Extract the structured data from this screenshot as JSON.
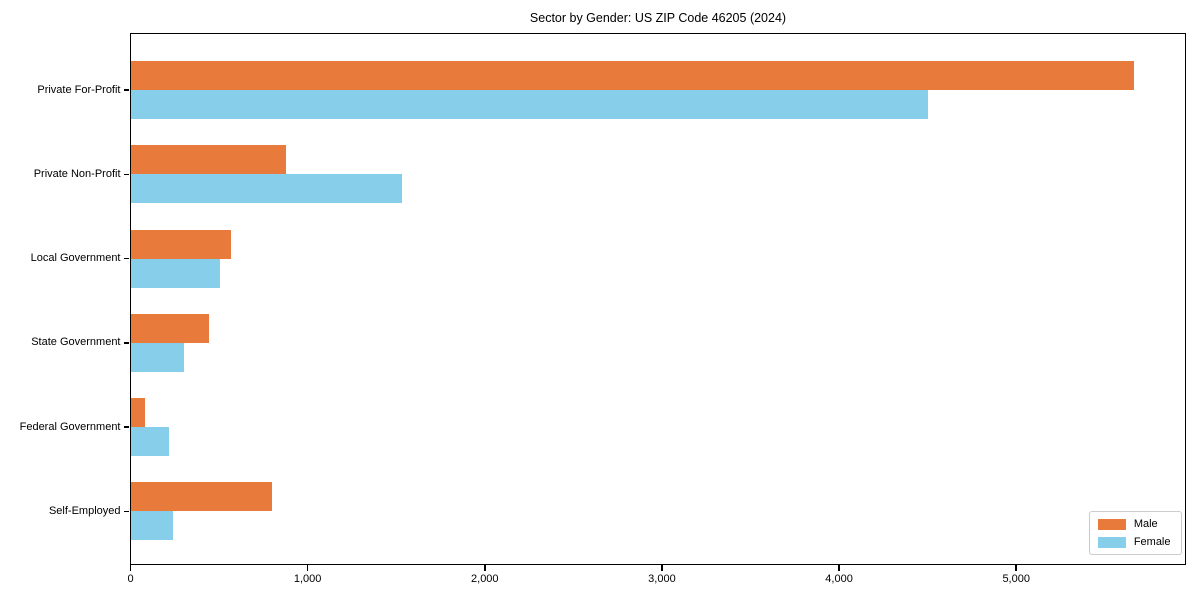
{
  "chart_data": {
    "type": "bar",
    "orientation": "horizontal",
    "title": "Sector by Gender: US ZIP Code 46205 (2024)",
    "categories": [
      "Private For-Profit",
      "Private Non-Profit",
      "Local Government",
      "State Government",
      "Federal Government",
      "Self-Employed"
    ],
    "series": [
      {
        "name": "Male",
        "color": "#E87A3B",
        "values": [
          5665,
          880,
          565,
          445,
          80,
          800
        ]
      },
      {
        "name": "Female",
        "color": "#87CEEB",
        "values": [
          4500,
          1535,
          505,
          300,
          215,
          240
        ]
      }
    ],
    "xlabel": "",
    "ylabel": "",
    "xlim": [
      0,
      5950
    ],
    "xticks": {
      "values": [
        0,
        1000,
        2000,
        3000,
        4000,
        5000
      ],
      "labels": [
        "0",
        "1,000",
        "2,000",
        "3,000",
        "4,000",
        "5,000"
      ]
    },
    "grid": false,
    "legend_position": "lower right",
    "axis_color": "#000000",
    "background_color": "#ffffff"
  }
}
